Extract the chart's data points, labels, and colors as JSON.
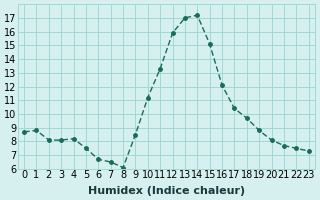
{
  "x": [
    0,
    1,
    2,
    3,
    4,
    5,
    6,
    7,
    8,
    9,
    10,
    11,
    12,
    13,
    14,
    15,
    16,
    17,
    18,
    19,
    20,
    21,
    22,
    23
  ],
  "y": [
    8.7,
    8.8,
    8.1,
    8.1,
    8.2,
    7.5,
    6.7,
    6.5,
    6.1,
    8.5,
    11.2,
    13.3,
    15.9,
    17.0,
    17.2,
    15.1,
    12.1,
    10.4,
    9.7,
    8.8,
    8.1,
    7.7,
    7.5,
    7.3
  ],
  "line_color": "#1a6b5a",
  "marker_color": "#1a6b5a",
  "bg_color": "#d6f0f0",
  "grid_color": "#a0d8d8",
  "xlabel": "Humidex (Indice chaleur)",
  "xlabel_fontsize": 8,
  "tick_fontsize": 7,
  "ylim": [
    6,
    18
  ],
  "yticks": [
    6,
    7,
    8,
    9,
    10,
    11,
    12,
    13,
    14,
    15,
    16,
    17
  ],
  "xticks": [
    0,
    1,
    2,
    3,
    4,
    5,
    6,
    7,
    8,
    9,
    10,
    11,
    12,
    13,
    14,
    15,
    16,
    17,
    18,
    19,
    20,
    21,
    22,
    23
  ],
  "xlim": [
    -0.5,
    23.5
  ]
}
